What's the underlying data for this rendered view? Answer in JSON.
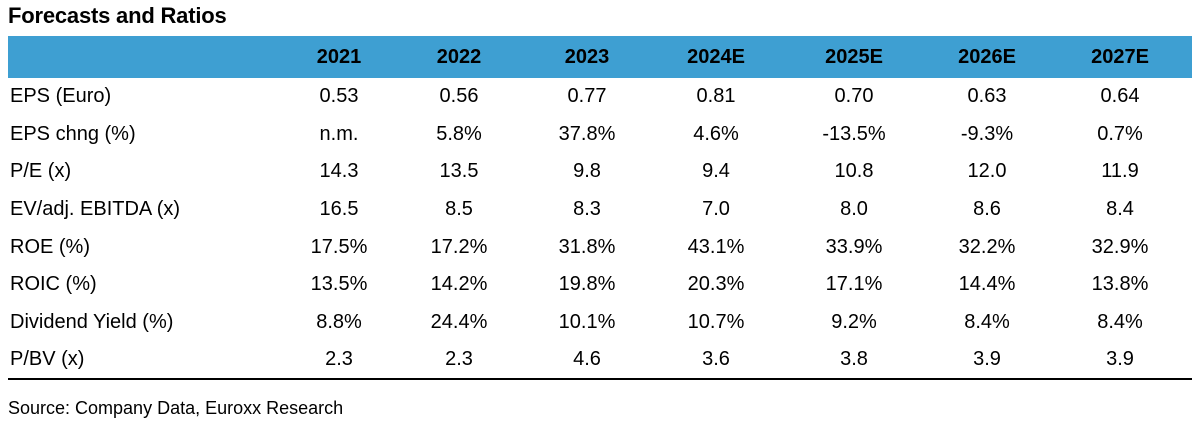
{
  "title": "Forecasts and Ratios",
  "columns": [
    "",
    "2021",
    "2022",
    "2023",
    "2024E",
    "2025E",
    "2026E",
    "2027E"
  ],
  "rows": [
    {
      "label": "EPS (Euro)",
      "values": [
        "0.53",
        "0.56",
        "0.77",
        "0.81",
        "0.70",
        "0.63",
        "0.64"
      ]
    },
    {
      "label": "EPS chng (%)",
      "values": [
        "n.m.",
        "5.8%",
        "37.8%",
        "4.6%",
        "-13.5%",
        "-9.3%",
        "0.7%"
      ]
    },
    {
      "label": "P/E (x)",
      "values": [
        "14.3",
        "13.5",
        "9.8",
        "9.4",
        "10.8",
        "12.0",
        "11.9"
      ]
    },
    {
      "label": "EV/adj. EBITDA (x)",
      "values": [
        "16.5",
        "8.5",
        "8.3",
        "7.0",
        "8.0",
        "8.6",
        "8.4"
      ]
    },
    {
      "label": "ROE (%)",
      "values": [
        "17.5%",
        "17.2%",
        "31.8%",
        "43.1%",
        "33.9%",
        "32.2%",
        "32.9%"
      ]
    },
    {
      "label": "ROIC (%)",
      "values": [
        "13.5%",
        "14.2%",
        "19.8%",
        "20.3%",
        "17.1%",
        "14.4%",
        "13.8%"
      ]
    },
    {
      "label": "Dividend Yield (%)",
      "values": [
        "8.8%",
        "24.4%",
        "10.1%",
        "10.7%",
        "9.2%",
        "8.4%",
        "8.4%"
      ]
    },
    {
      "label": "P/BV (x)",
      "values": [
        "2.3",
        "2.3",
        "4.6",
        "3.6",
        "3.8",
        "3.9",
        "3.9"
      ]
    }
  ],
  "source": "Source: Company Data, Euroxx Research",
  "colors": {
    "header_bg": "#3e9fd2",
    "text": "#000000",
    "rule": "#000000"
  }
}
